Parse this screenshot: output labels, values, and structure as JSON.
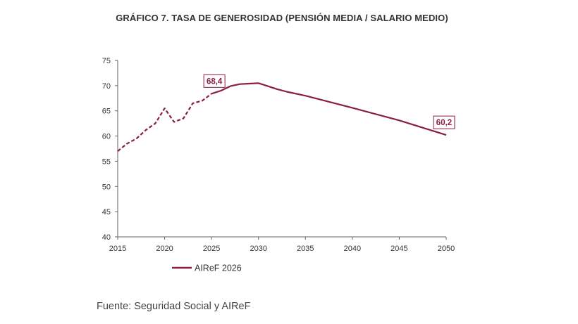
{
  "colors": {
    "series": "#8b1e3f",
    "axis": "#666666",
    "text": "#333333"
  },
  "source_text": "Fuente: Seguridad Social y AIReF",
  "chart_data": {
    "type": "line",
    "title": "GRÁFICO 7.  TASA DE GENEROSIDAD (PENSIÓN MEDIA / SALARIO MEDIO)",
    "xlabel": "",
    "ylabel": "",
    "xlim": [
      2015,
      2050
    ],
    "ylim": [
      40,
      75
    ],
    "x_ticks": [
      2015,
      2020,
      2025,
      2030,
      2035,
      2040,
      2045,
      2050
    ],
    "y_ticks": [
      40,
      45,
      50,
      55,
      60,
      65,
      70,
      75
    ],
    "grid": false,
    "legend_position": "bottom-left",
    "series": [
      {
        "name": "",
        "style": "dashed",
        "x": [
          2015,
          2016,
          2017,
          2018,
          2019,
          2020,
          2021,
          2022,
          2023,
          2024,
          2025
        ],
        "y": [
          57.0,
          58.5,
          59.5,
          61.2,
          62.5,
          65.5,
          62.8,
          63.5,
          66.5,
          67.0,
          68.4
        ]
      },
      {
        "name": "AIReF 2026",
        "style": "solid",
        "x": [
          2025,
          2026,
          2027,
          2028,
          2029,
          2030,
          2031,
          2032,
          2033,
          2035,
          2040,
          2045,
          2050
        ],
        "y": [
          68.4,
          69.0,
          69.9,
          70.3,
          70.4,
          70.5,
          69.9,
          69.3,
          68.8,
          68.0,
          65.6,
          63.1,
          60.2
        ]
      }
    ],
    "annotations": [
      {
        "x": 2025,
        "y": 68.4,
        "text": "68,4"
      },
      {
        "x": 2050,
        "y": 60.2,
        "text": "60,2"
      }
    ]
  }
}
